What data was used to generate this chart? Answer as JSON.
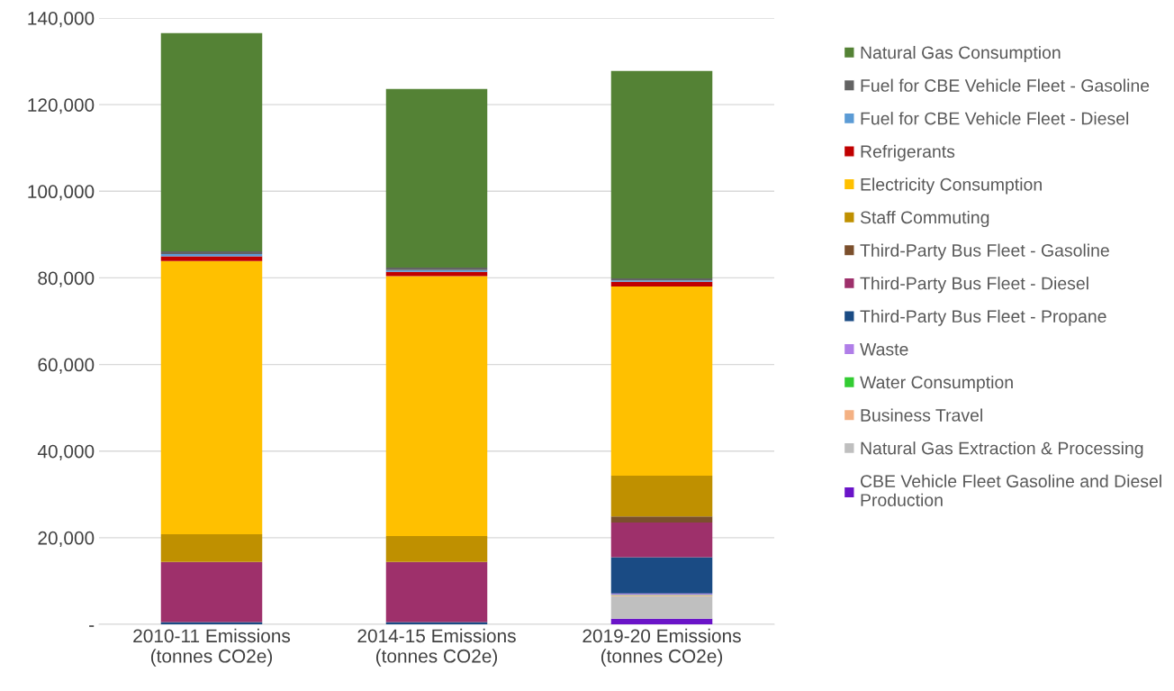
{
  "chart_data": {
    "type": "bar",
    "stacked": true,
    "categories": [
      "2010-11 Emissions\n(tonnes CO2e)",
      "2014-15 Emissions\n(tonnes CO2e)",
      "2019-20 Emissions\n(tonnes CO2e)"
    ],
    "series": [
      {
        "name": "CBE Vehicle Fleet Gasoline and Diesel\nProduction",
        "color": "#6a14c8",
        "values": [
          0,
          0,
          1300
        ]
      },
      {
        "name": "Natural Gas Extraction & Processing",
        "color": "#bfbfbf",
        "values": [
          0,
          0,
          5200
        ]
      },
      {
        "name": "Business Travel",
        "color": "#f4b183",
        "values": [
          0,
          0,
          200
        ]
      },
      {
        "name": "Water Consumption",
        "color": "#33cc33",
        "values": [
          0,
          0,
          100
        ]
      },
      {
        "name": "Waste",
        "color": "#b07ee8",
        "values": [
          0,
          0,
          300
        ]
      },
      {
        "name": "Third-Party Bus Fleet - Propane",
        "color": "#1a4b84",
        "values": [
          500,
          500,
          8400
        ]
      },
      {
        "name": "Third-Party Bus Fleet - Diesel",
        "color": "#9e306b",
        "values": [
          13900,
          13900,
          8000
        ]
      },
      {
        "name": "Third-Party Bus Fleet - Gasoline",
        "color": "#7b4f2c",
        "values": [
          0,
          0,
          1400
        ]
      },
      {
        "name": "Staff Commuting",
        "color": "#bf9000",
        "values": [
          6400,
          6000,
          9400
        ]
      },
      {
        "name": "Electricity Consumption",
        "color": "#ffc000",
        "values": [
          63100,
          60000,
          43700
        ]
      },
      {
        "name": "Refrigerants",
        "color": "#c00000",
        "values": [
          1100,
          1000,
          1100
        ]
      },
      {
        "name": "Fuel for CBE Vehicle Fleet - Diesel",
        "color": "#5b9bd5",
        "values": [
          500,
          400,
          300
        ]
      },
      {
        "name": "Fuel for CBE Vehicle Fleet - Gasoline",
        "color": "#636363",
        "values": [
          600,
          600,
          500
        ]
      },
      {
        "name": "Natural Gas Consumption",
        "color": "#548235",
        "values": [
          50400,
          41200,
          47900
        ]
      }
    ],
    "ylim": [
      0,
      140000
    ],
    "yticks": [
      {
        "value": 0,
        "label": "-"
      },
      {
        "value": 20000,
        "label": "20,000"
      },
      {
        "value": 40000,
        "label": "40,000"
      },
      {
        "value": 60000,
        "label": "60,000"
      },
      {
        "value": 80000,
        "label": "80,000"
      },
      {
        "value": 100000,
        "label": "100,000"
      },
      {
        "value": 120000,
        "label": "120,000"
      },
      {
        "value": 140000,
        "label": "140,000"
      }
    ],
    "grid": "y",
    "legend": "right"
  }
}
